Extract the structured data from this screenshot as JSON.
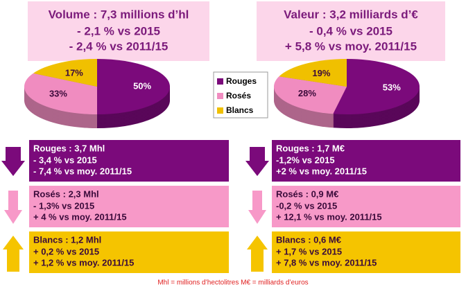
{
  "chart_data": [
    {
      "type": "pie",
      "title": "Volume : 7,3 millions d’hl",
      "subtitle": [
        "- 2,1 % vs 2015",
        "- 2,4 % vs 2011/15"
      ],
      "categories": [
        "Rouges",
        "Rosés",
        "Blancs"
      ],
      "values": [
        50,
        33,
        17
      ],
      "value_labels": [
        "50%",
        "33%",
        "17%"
      ],
      "colors": [
        "#7b0a7b",
        "#f08cc0",
        "#f0c000"
      ],
      "legend": true
    },
    {
      "type": "pie",
      "title": "Valeur : 3,2 milliards d’€",
      "subtitle": [
        "- 0,4 % vs 2015",
        "+ 5,8 % vs moy. 2011/15"
      ],
      "categories": [
        "Rouges",
        "Rosés",
        "Blancs"
      ],
      "values": [
        53,
        28,
        19
      ],
      "value_labels": [
        "53%",
        "28%",
        "19%"
      ],
      "colors": [
        "#7b0a7b",
        "#f08cc0",
        "#f0c000"
      ],
      "legend": false
    }
  ],
  "panels": [
    {
      "rows": [
        {
          "title": "Rouges : 3,7 Mhl",
          "lines": [
            "- 3,4 % vs 2015",
            "- 7,4 % vs moy. 2011/15"
          ]
        },
        {
          "title": "Rosés : 2,3 Mhl",
          "lines": [
            "- 1,3% vs 2015",
            "+ 4 % vs moy. 2011/15"
          ]
        },
        {
          "title": "Blancs : 1,2 Mhl",
          "lines": [
            "+ 0,2 % vs 2015",
            "+ 1,2 % vs moy. 2011/15"
          ]
        }
      ]
    },
    {
      "rows": [
        {
          "title": "Rouges : 1,7  M€",
          "lines": [
            "-1,2% vs 2015",
            "+2 % vs moy. 2011/15"
          ]
        },
        {
          "title": "Rosés : 0,9 M€",
          "lines": [
            "-0,2 % vs 2015",
            "+ 12,1 % vs moy. 2011/15"
          ]
        },
        {
          "title": "Blancs : 0,6 M€",
          "lines": [
            "+ 1,7 % vs 2015",
            "+ 7,8 % vs moy. 2011/15"
          ]
        }
      ]
    }
  ],
  "footnote": "Mhl = millions d’hectolitres  M€ = milliards d’euros"
}
